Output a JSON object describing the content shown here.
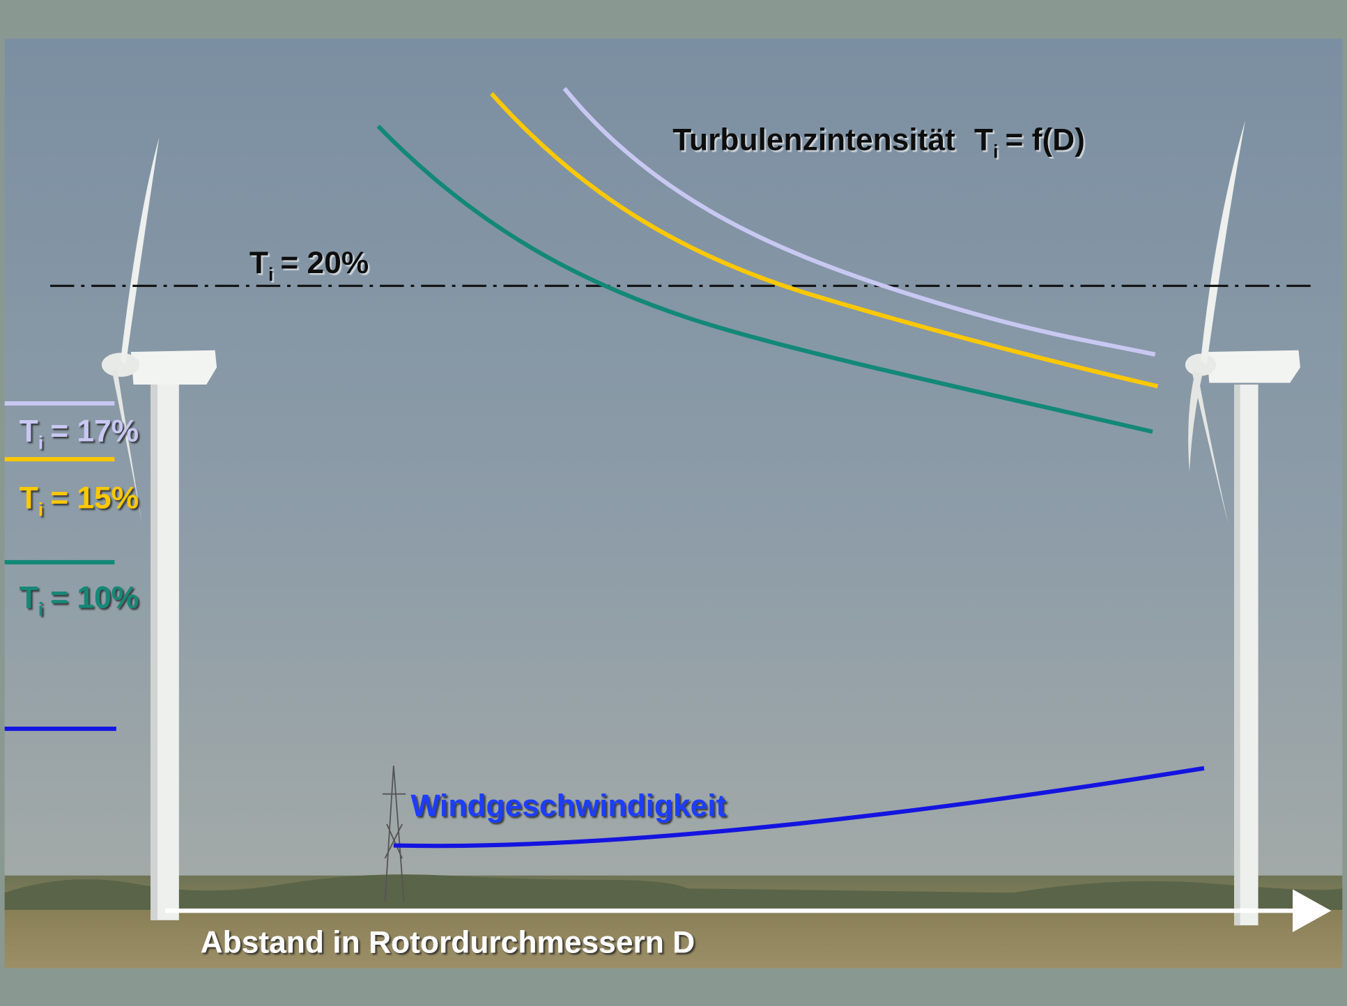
{
  "title": {
    "text": "Turbulenzintensität",
    "symbol": "T",
    "subscript": "i",
    "formula": "= f(D)"
  },
  "threshold": {
    "symbol": "T",
    "subscript": "i",
    "value": "= 20%"
  },
  "legend": [
    {
      "symbol": "T",
      "subscript": "i",
      "value": "= 17%"
    },
    {
      "symbol": "T",
      "subscript": "i",
      "value": "= 15%"
    },
    {
      "symbol": "T",
      "subscript": "i",
      "value": "= 10%"
    }
  ],
  "wind_label": "Windgeschwindigkeit",
  "x_axis_label": "Abstand in Rotordurchmessern D"
}
